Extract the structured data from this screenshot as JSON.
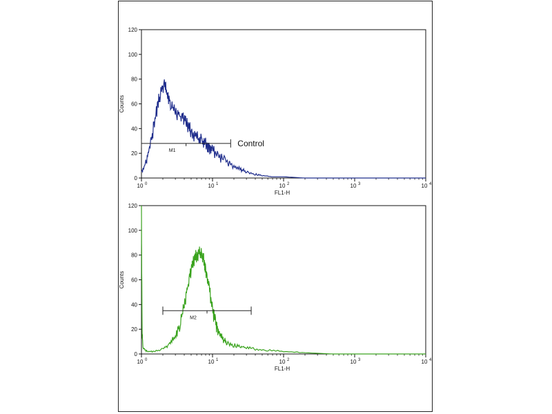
{
  "chart_data": [
    {
      "type": "line",
      "title": "",
      "xlabel": "FL1-H",
      "ylabel": "Counts",
      "x_scale": "log",
      "xlim": [
        1,
        10000
      ],
      "ylim": [
        0,
        120
      ],
      "x_tick_labels": [
        "10",
        "10",
        "10",
        "10",
        "10"
      ],
      "x_tick_exponents": [
        "0",
        "1",
        "2",
        "3",
        "4"
      ],
      "y_ticks": [
        0,
        20,
        40,
        60,
        80,
        100,
        120
      ],
      "grid": false,
      "series": [
        {
          "color": "#1f2d8c",
          "x": [
            1.0,
            1.15,
            1.3,
            1.5,
            1.7,
            1.9,
            2.1,
            2.3,
            2.6,
            3.0,
            3.5,
            4.0,
            4.5,
            5.0,
            6.0,
            7.0,
            8.0,
            9.0,
            10.0,
            12.0,
            15.0,
            20.0,
            25.0,
            30.0,
            40.0,
            50.0,
            70.0,
            100.0,
            200.0,
            500.0,
            1000.0,
            10000.0
          ],
          "y": [
            5,
            12,
            25,
            42,
            60,
            70,
            76,
            68,
            60,
            54,
            50,
            48,
            42,
            38,
            33,
            30,
            27,
            24,
            22,
            18,
            14,
            9,
            7,
            5,
            3,
            2,
            1,
            1,
            0,
            0,
            0,
            0
          ]
        }
      ],
      "markers": [
        {
          "label": "M1",
          "x_range": [
            1.0,
            18.0
          ],
          "y": 28
        }
      ],
      "annotation": "Control"
    },
    {
      "type": "line",
      "title": "",
      "xlabel": "FL1-H",
      "ylabel": "Counts",
      "x_scale": "log",
      "xlim": [
        1,
        10000
      ],
      "ylim": [
        0,
        120
      ],
      "x_tick_labels": [
        "10",
        "10",
        "10",
        "10",
        "10"
      ],
      "x_tick_exponents": [
        "0",
        "1",
        "2",
        "3",
        "4"
      ],
      "y_ticks": [
        0,
        20,
        40,
        60,
        80,
        100,
        120
      ],
      "grid": false,
      "series": [
        {
          "color": "#3aa31e",
          "x": [
            1.0,
            1.02,
            1.05,
            1.2,
            1.5,
            2.0,
            2.5,
            3.0,
            3.5,
            4.0,
            4.5,
            5.0,
            5.5,
            6.0,
            6.5,
            7.0,
            7.5,
            8.0,
            9.0,
            10.0,
            11.0,
            12.0,
            14.0,
            16.0,
            20.0,
            25.0,
            30.0,
            40.0,
            60.0,
            100.0,
            200.0,
            500.0,
            1000.0,
            10000.0
          ],
          "y": [
            120,
            20,
            5,
            2,
            2,
            4,
            8,
            14,
            25,
            40,
            55,
            68,
            76,
            80,
            82,
            80,
            76,
            68,
            52,
            36,
            25,
            18,
            12,
            9,
            7,
            6,
            5,
            4,
            3,
            2,
            1,
            0,
            0,
            0
          ]
        }
      ],
      "markers": [
        {
          "label": "M2",
          "x_range": [
            2.0,
            35.0
          ],
          "y": 35
        }
      ]
    }
  ]
}
